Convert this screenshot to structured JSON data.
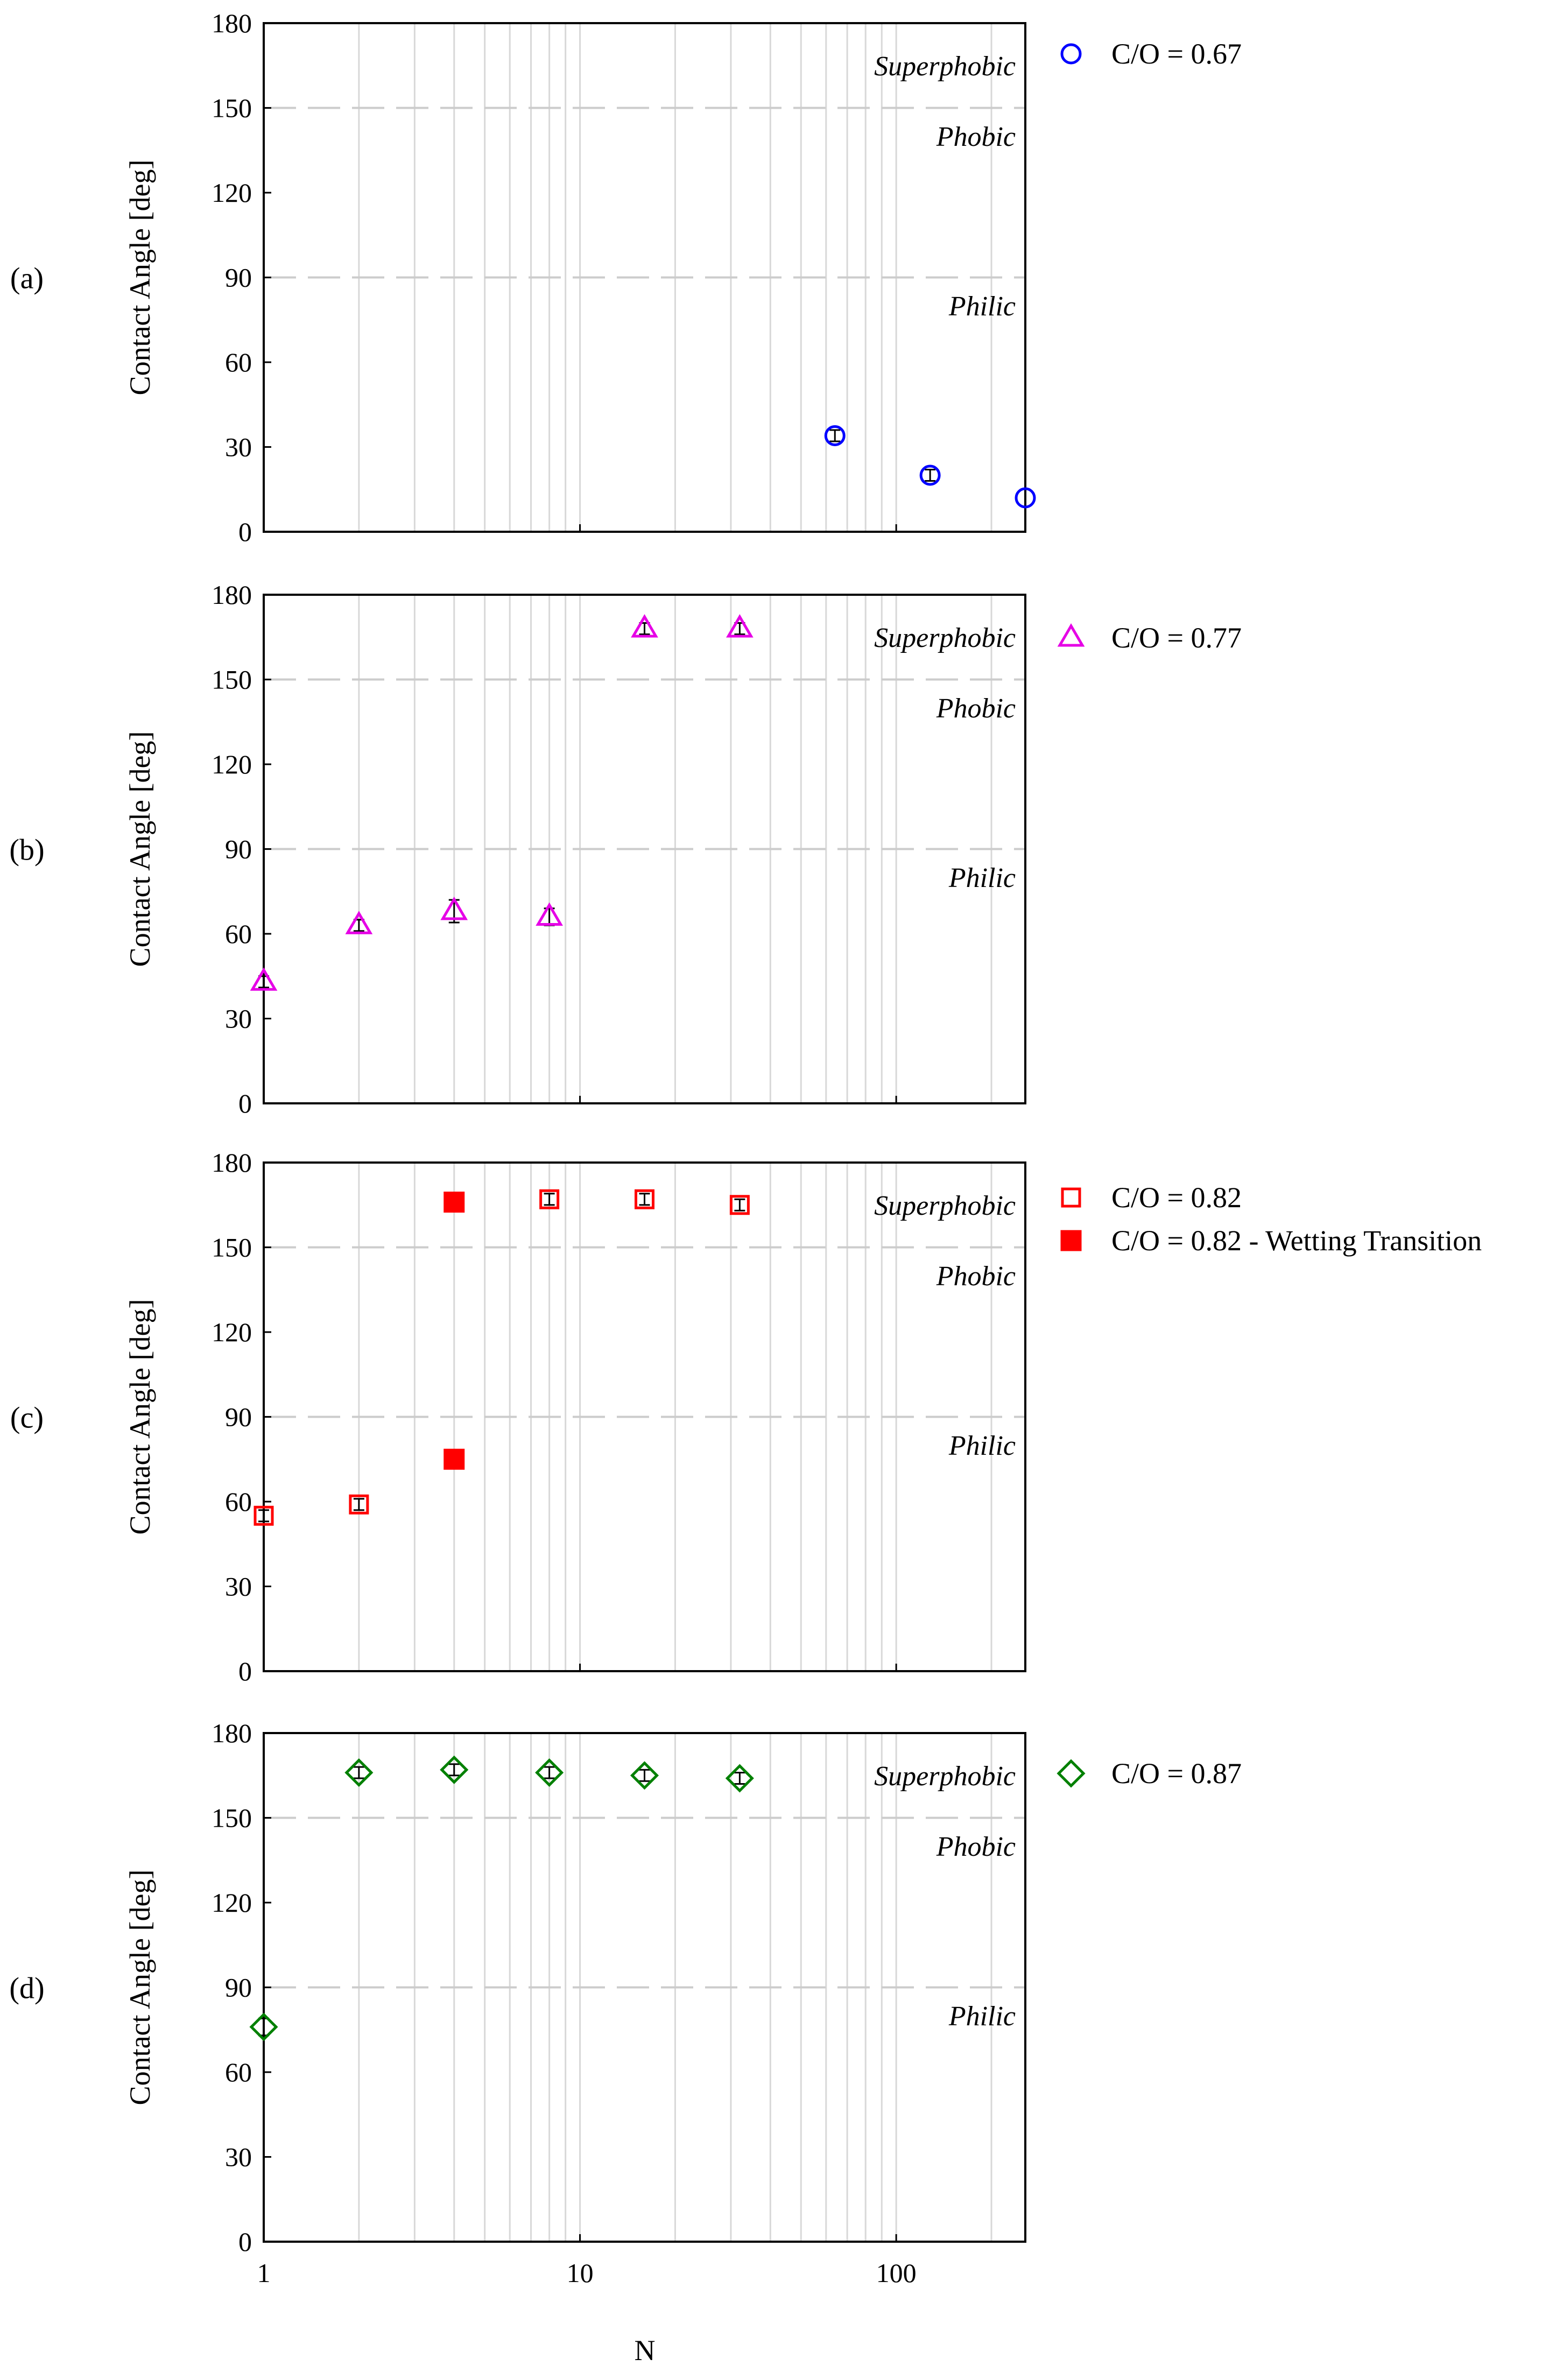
{
  "chart_data": [
    {
      "type": "scatter",
      "panel_label": "(a)",
      "ylabel": "Contact Angle [deg]",
      "xscale": "log",
      "xlim": [
        1,
        256
      ],
      "ylim": [
        0,
        180
      ],
      "yticks": [
        0,
        30,
        60,
        90,
        120,
        150,
        180
      ],
      "regions": [
        {
          "label": "Superphobic",
          "y": 165
        },
        {
          "label": "Phobic",
          "y": 140
        },
        {
          "label": "Philic",
          "y": 80
        }
      ],
      "series": [
        {
          "name": "C/O = 0.67",
          "marker": "circle-open",
          "color": "#0000ff",
          "x": [
            64,
            128,
            256
          ],
          "y": [
            34,
            20,
            12
          ],
          "err": [
            2,
            2,
            0
          ]
        }
      ]
    },
    {
      "type": "scatter",
      "panel_label": "(b)",
      "ylabel": "Contact Angle [deg]",
      "xscale": "log",
      "xlim": [
        1,
        256
      ],
      "ylim": [
        0,
        180
      ],
      "yticks": [
        0,
        30,
        60,
        90,
        120,
        150,
        180
      ],
      "regions": [
        {
          "label": "Superphobic",
          "y": 165
        },
        {
          "label": "Phobic",
          "y": 140
        },
        {
          "label": "Philic",
          "y": 80
        }
      ],
      "series": [
        {
          "name": "C/O = 0.77",
          "marker": "triangle-open",
          "color": "#e600e6",
          "x": [
            1,
            2,
            4,
            8,
            16,
            32
          ],
          "y": [
            43,
            63,
            68,
            66,
            168,
            168
          ],
          "err": [
            2,
            2,
            4,
            3,
            2,
            2
          ]
        }
      ]
    },
    {
      "type": "scatter",
      "panel_label": "(c)",
      "ylabel": "Contact Angle [deg]",
      "xscale": "log",
      "xlim": [
        1,
        256
      ],
      "ylim": [
        0,
        180
      ],
      "yticks": [
        0,
        30,
        60,
        90,
        120,
        150,
        180
      ],
      "regions": [
        {
          "label": "Superphobic",
          "y": 165
        },
        {
          "label": "Phobic",
          "y": 140
        },
        {
          "label": "Philic",
          "y": 80
        }
      ],
      "series": [
        {
          "name": "C/O = 0.82",
          "marker": "square-open",
          "color": "#ff0000",
          "x": [
            1,
            2,
            8,
            16,
            32
          ],
          "y": [
            55,
            59,
            167,
            167,
            165
          ],
          "err": [
            2,
            2,
            2,
            2,
            2
          ]
        },
        {
          "name": "C/O = 0.82 - Wetting Transition",
          "marker": "square-filled",
          "color": "#ff0000",
          "x": [
            4,
            4
          ],
          "y": [
            166,
            75
          ],
          "err": [
            0,
            0
          ]
        }
      ]
    },
    {
      "type": "scatter",
      "panel_label": "(d)",
      "ylabel": "Contact Angle [deg]",
      "xlabel": "N",
      "xscale": "log",
      "xlim": [
        1,
        256
      ],
      "ylim": [
        0,
        180
      ],
      "yticks": [
        0,
        30,
        60,
        90,
        120,
        150,
        180
      ],
      "xticklabels": [
        "1",
        "10",
        "100"
      ],
      "regions": [
        {
          "label": "Superphobic",
          "y": 165
        },
        {
          "label": "Phobic",
          "y": 140
        },
        {
          "label": "Philic",
          "y": 80
        }
      ],
      "series": [
        {
          "name": "C/O = 0.87",
          "marker": "diamond-open",
          "color": "#008000",
          "x": [
            1,
            2,
            4,
            8,
            16,
            32
          ],
          "y": [
            76,
            166,
            167,
            166,
            165,
            164
          ],
          "err": [
            3,
            2,
            2,
            2,
            2,
            2
          ]
        }
      ]
    }
  ]
}
